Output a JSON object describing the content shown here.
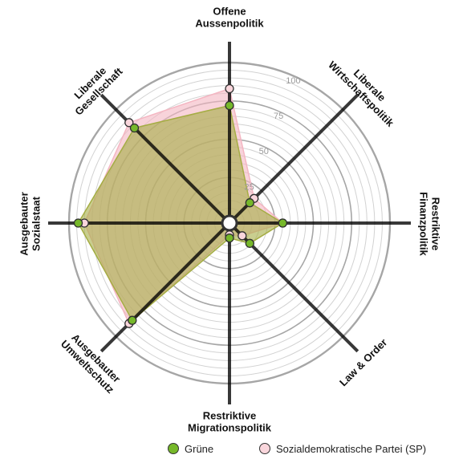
{
  "chart_data": {
    "type": "radar",
    "title": "",
    "axes": [
      "Offene\nAussenpolitik",
      "Liberale\nWirtschaftspolitik",
      "Restriktive\nFinanzpolitik",
      "Law & Order",
      "Restriktive\nMigrationspolitik",
      "Ausgebauter\nUmweltschutz",
      "Ausgebauter\nSozialstaat",
      "Liberale\nGesellschaft"
    ],
    "range": [
      0,
      100
    ],
    "ticks": [
      25,
      50,
      75,
      100
    ],
    "series": [
      {
        "name": "Sozialdemokratische Partei (SP)",
        "values": [
          83,
          18,
          30,
          7,
          3,
          88,
          90,
          88
        ],
        "fill_color": "#f4b6c2",
        "marker_color": "#f9d6dc"
      },
      {
        "name": "Grüne",
        "values": [
          72,
          14,
          30,
          14,
          5,
          85,
          94,
          83
        ],
        "fill_color": "#a5ad44",
        "marker_color": "#76b82a"
      }
    ],
    "legend_position": "bottom"
  }
}
